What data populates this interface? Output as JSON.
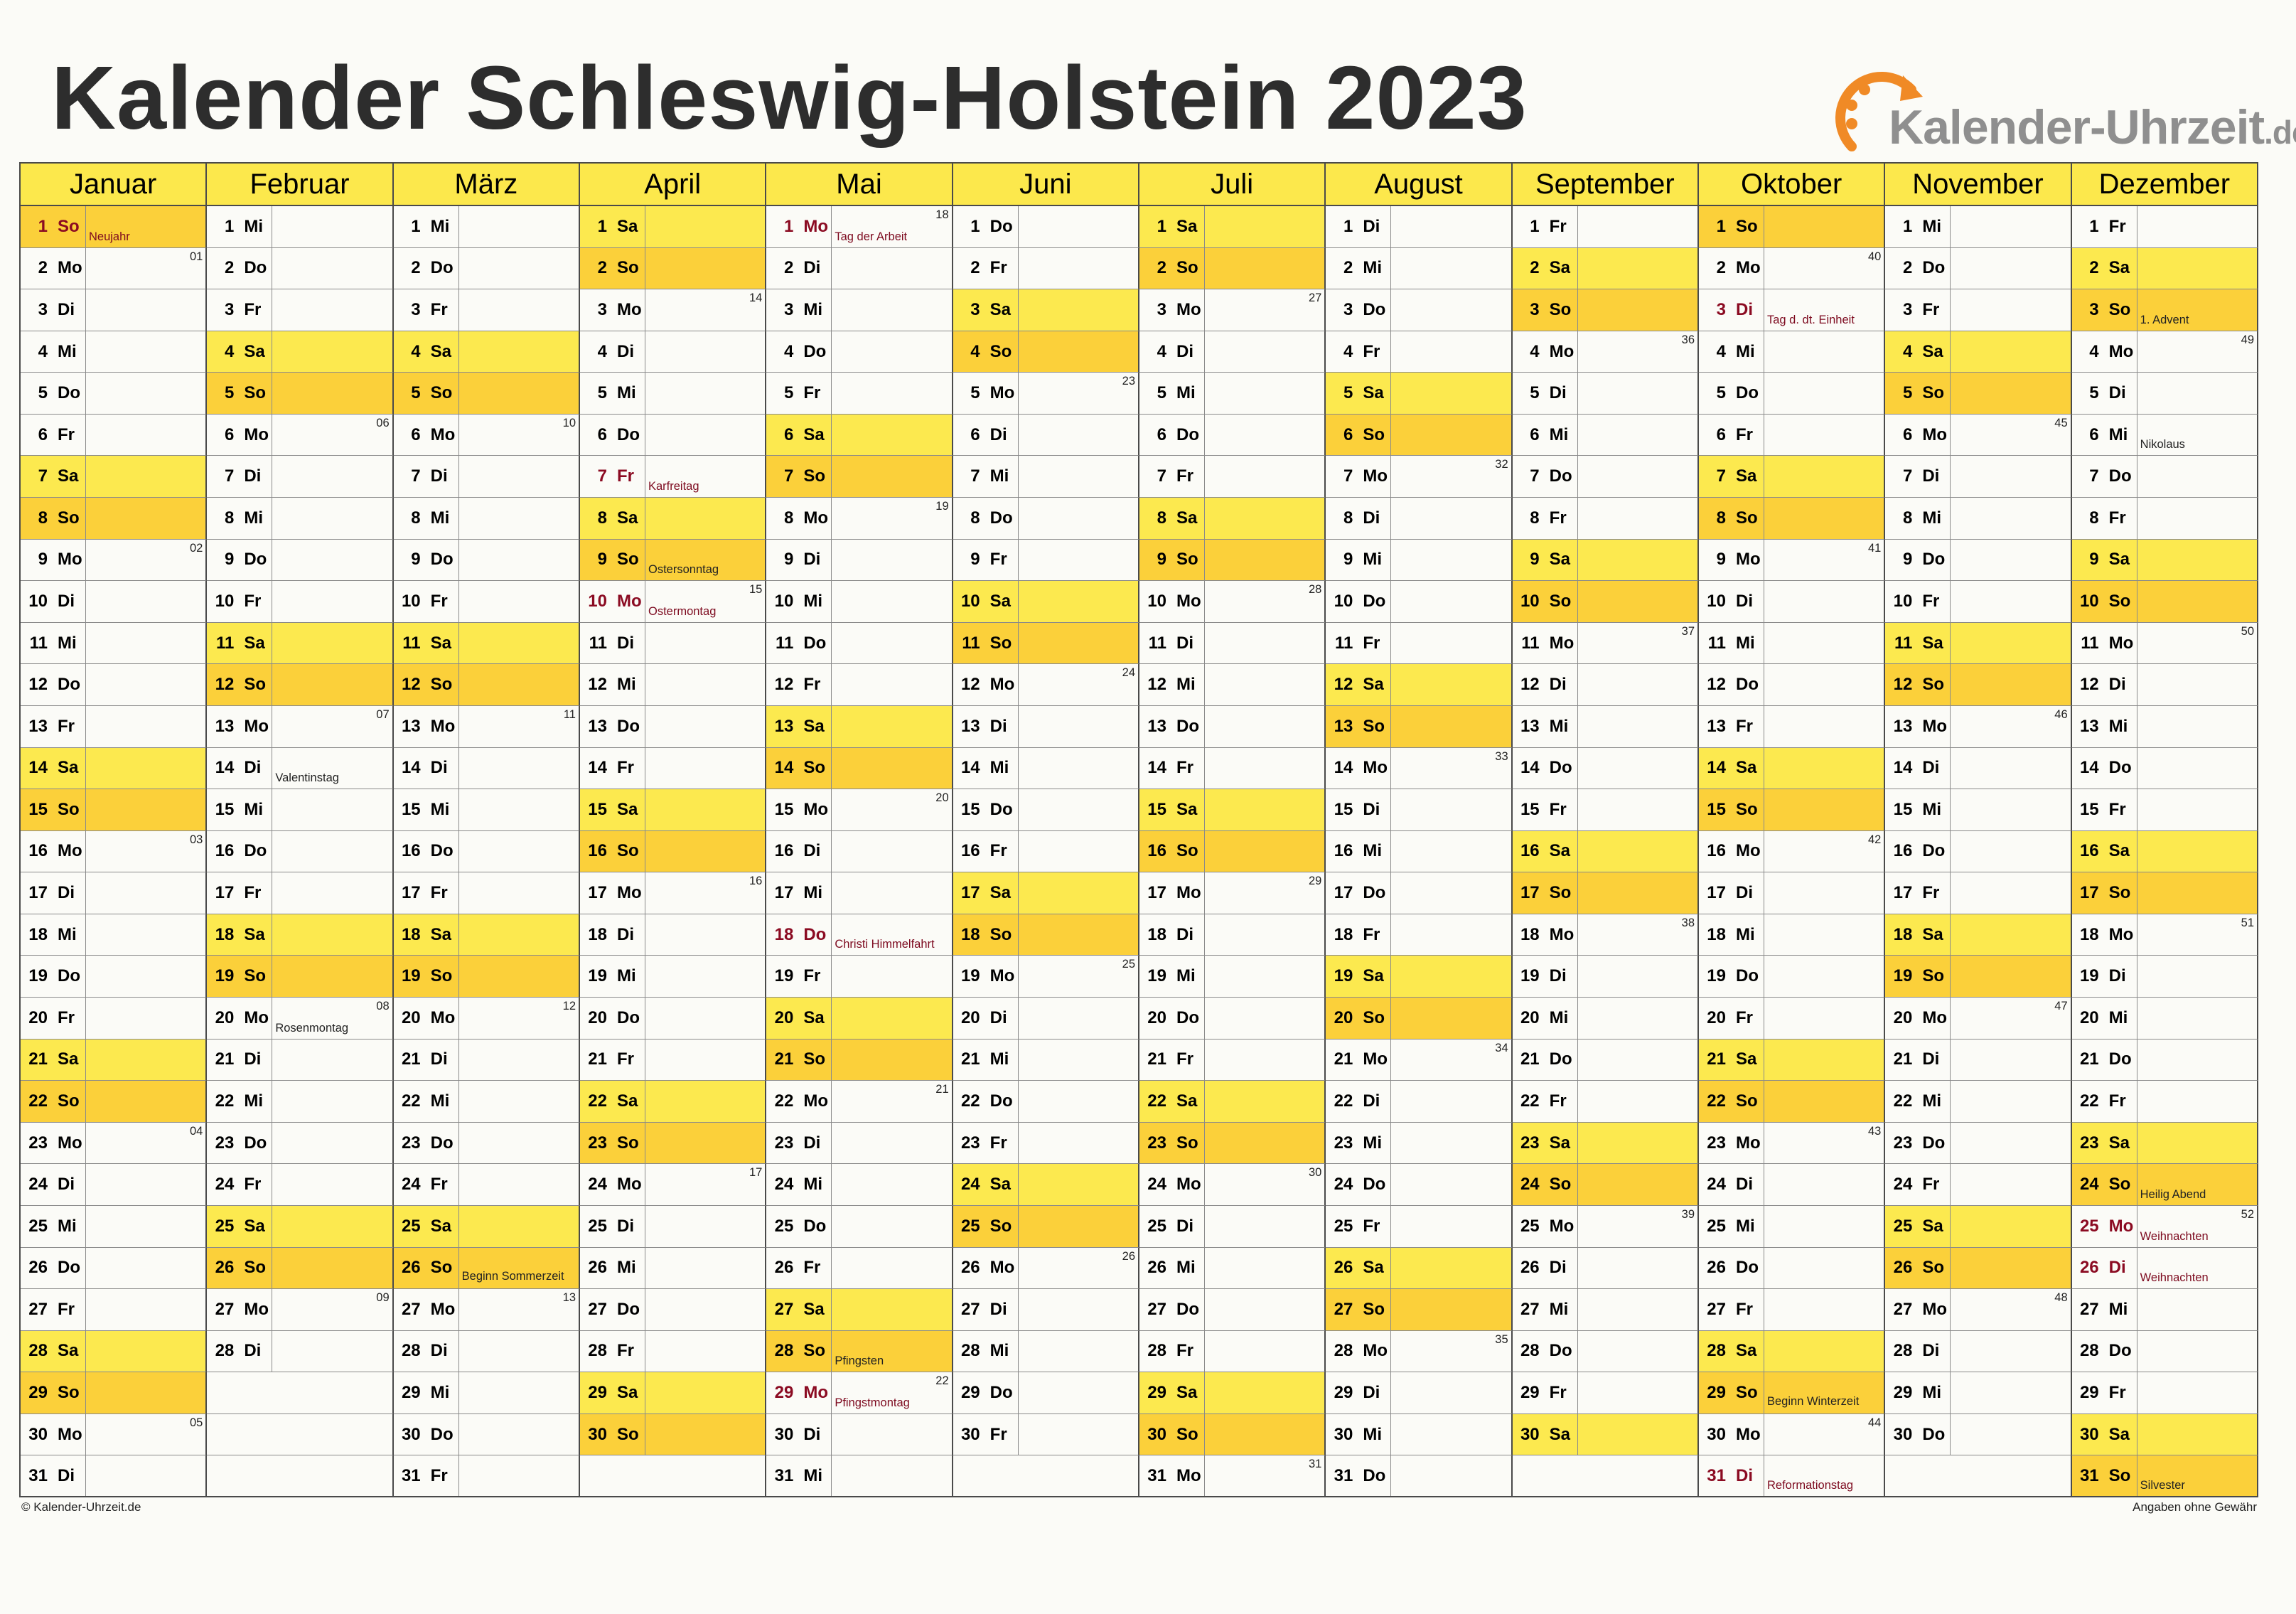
{
  "title": "Kalender Schleswig-Holstein 2023",
  "logo": {
    "text": "Kalender-Uhrzeit",
    "tld": ".de",
    "icon": "clock-arrow-icon",
    "accent": "#f08a26"
  },
  "colors": {
    "header": "#fce84c",
    "saturday": "#fce94f",
    "sunday": "#fbd03a",
    "holiday_text": "#8b0b22"
  },
  "weekdays": [
    "Mo",
    "Di",
    "Mi",
    "Do",
    "Fr",
    "Sa",
    "So"
  ],
  "months": [
    {
      "name": "Januar",
      "first_weekday": 6,
      "days": 31
    },
    {
      "name": "Februar",
      "first_weekday": 2,
      "days": 28
    },
    {
      "name": "März",
      "first_weekday": 2,
      "days": 31
    },
    {
      "name": "April",
      "first_weekday": 5,
      "days": 30
    },
    {
      "name": "Mai",
      "first_weekday": 0,
      "days": 31
    },
    {
      "name": "Juni",
      "first_weekday": 3,
      "days": 30
    },
    {
      "name": "Juli",
      "first_weekday": 5,
      "days": 31
    },
    {
      "name": "August",
      "first_weekday": 1,
      "days": 31
    },
    {
      "name": "September",
      "first_weekday": 4,
      "days": 30
    },
    {
      "name": "Oktober",
      "first_weekday": 6,
      "days": 31
    },
    {
      "name": "November",
      "first_weekday": 2,
      "days": 30
    },
    {
      "name": "Dezember",
      "first_weekday": 4,
      "days": 31
    }
  ],
  "week_numbers": [
    [
      "01",
      "02",
      "03",
      "04",
      "05"
    ],
    [
      "06",
      "07",
      "08",
      "09"
    ],
    [
      "10",
      "11",
      "12",
      "13"
    ],
    [
      "14",
      "15",
      "16",
      "17"
    ],
    [
      "18",
      "19",
      "20",
      "21",
      "22"
    ],
    [
      "23",
      "24",
      "25",
      "26"
    ],
    [
      "27",
      "28",
      "29",
      "30",
      "31"
    ],
    [
      "32",
      "33",
      "34",
      "35"
    ],
    [
      "36",
      "37",
      "38",
      "39"
    ],
    [
      "40",
      "41",
      "42",
      "43",
      "44"
    ],
    [
      "45",
      "46",
      "47",
      "48"
    ],
    [
      "49",
      "50",
      "51",
      "52"
    ]
  ],
  "events": [
    {
      "month": 1,
      "day": 1,
      "label": "Neujahr",
      "holiday": true
    },
    {
      "month": 2,
      "day": 14,
      "label": "Valentinstag",
      "holiday": false
    },
    {
      "month": 2,
      "day": 20,
      "label": "Rosenmontag",
      "holiday": false
    },
    {
      "month": 3,
      "day": 26,
      "label": "Beginn Sommerzeit",
      "holiday": false
    },
    {
      "month": 4,
      "day": 7,
      "label": "Karfreitag",
      "holiday": true
    },
    {
      "month": 4,
      "day": 9,
      "label": "Ostersonntag",
      "holiday": false
    },
    {
      "month": 4,
      "day": 10,
      "label": "Ostermontag",
      "holiday": true
    },
    {
      "month": 5,
      "day": 1,
      "label": "Tag der Arbeit",
      "holiday": true
    },
    {
      "month": 5,
      "day": 18,
      "label": "Christi Himmelfahrt",
      "holiday": true
    },
    {
      "month": 5,
      "day": 28,
      "label": "Pfingsten",
      "holiday": false
    },
    {
      "month": 5,
      "day": 29,
      "label": "Pfingstmontag",
      "holiday": true
    },
    {
      "month": 10,
      "day": 3,
      "label": "Tag d. dt. Einheit",
      "holiday": true
    },
    {
      "month": 10,
      "day": 29,
      "label": "Beginn Winterzeit",
      "holiday": false
    },
    {
      "month": 10,
      "day": 31,
      "label": "Reformationstag",
      "holiday": true
    },
    {
      "month": 12,
      "day": 3,
      "label": "1. Advent",
      "holiday": false
    },
    {
      "month": 12,
      "day": 6,
      "label": "Nikolaus",
      "holiday": false
    },
    {
      "month": 12,
      "day": 24,
      "label": "Heilig Abend",
      "holiday": false
    },
    {
      "month": 12,
      "day": 25,
      "label": "Weihnachten",
      "holiday": true
    },
    {
      "month": 12,
      "day": 26,
      "label": "Weihnachten",
      "holiday": true
    },
    {
      "month": 12,
      "day": 31,
      "label": "Silvester",
      "holiday": false
    }
  ],
  "footer": {
    "copyright": "© Kalender-Uhrzeit.de",
    "disclaimer": "Angaben ohne Gewähr"
  }
}
